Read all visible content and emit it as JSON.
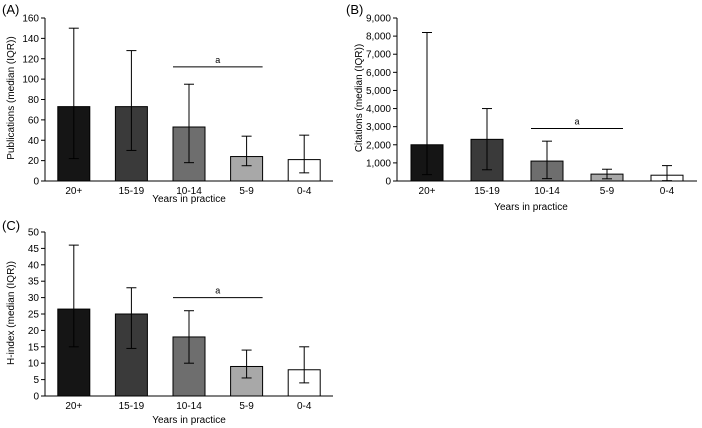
{
  "chart_data": [
    {
      "id": "A",
      "type": "bar",
      "panel_label": "(A)",
      "title": "",
      "xlabel": "Years in practice",
      "ylabel": "Publications (median (IQR))",
      "categories": [
        "20+",
        "15-19",
        "10-14",
        "5-9",
        "0-4"
      ],
      "values": [
        73,
        73,
        53,
        24,
        21
      ],
      "error_low": [
        22,
        30,
        18,
        15,
        8
      ],
      "error_high": [
        150,
        128,
        95,
        44,
        45
      ],
      "bar_colors": [
        "#151515",
        "#3a3a3a",
        "#6e6e6e",
        "#a8a8a8",
        "#ffffff"
      ],
      "yticks": [
        0,
        20,
        40,
        60,
        80,
        100,
        120,
        140,
        160
      ],
      "ytick_labels": [
        "0",
        "20",
        "40",
        "60",
        "80",
        "100",
        "120",
        "140",
        "160"
      ],
      "ylim": [
        0,
        160
      ],
      "grid": false,
      "significance": {
        "label": "a",
        "from": "10-14",
        "to": "5-9",
        "y": 112
      }
    },
    {
      "id": "B",
      "type": "bar",
      "panel_label": "(B)",
      "title": "",
      "xlabel": "Years in practice",
      "ylabel": "Citations (median (IQR))",
      "categories": [
        "20+",
        "15-19",
        "10-14",
        "5-9",
        "0-4"
      ],
      "values": [
        2000,
        2300,
        1100,
        380,
        320
      ],
      "error_low": [
        350,
        620,
        130,
        120,
        20
      ],
      "error_high": [
        8200,
        4000,
        2200,
        650,
        850
      ],
      "bar_colors": [
        "#151515",
        "#3a3a3a",
        "#6e6e6e",
        "#a8a8a8",
        "#ffffff"
      ],
      "yticks": [
        0,
        1000,
        2000,
        3000,
        4000,
        5000,
        6000,
        7000,
        8000,
        9000
      ],
      "ytick_labels": [
        "0",
        "1,000",
        "2,000",
        "3,000",
        "4,000",
        "5,000",
        "6,000",
        "7,000",
        "8,000",
        "9,000"
      ],
      "ylim": [
        0,
        9000
      ],
      "grid": false,
      "significance": {
        "label": "a",
        "from": "10-14",
        "to": "5-9",
        "y": 2900
      }
    },
    {
      "id": "C",
      "type": "bar",
      "panel_label": "(C)",
      "title": "",
      "xlabel": "Years in practice",
      "ylabel": "H-index (median (IQR))",
      "categories": [
        "20+",
        "15-19",
        "10-14",
        "5-9",
        "0-4"
      ],
      "values": [
        26.5,
        25,
        18,
        9,
        8
      ],
      "error_low": [
        15,
        14.5,
        10,
        5.5,
        4
      ],
      "error_high": [
        46,
        33,
        26,
        14,
        15
      ],
      "bar_colors": [
        "#151515",
        "#3a3a3a",
        "#6e6e6e",
        "#a8a8a8",
        "#ffffff"
      ],
      "yticks": [
        0,
        5,
        10,
        15,
        20,
        25,
        30,
        35,
        40,
        45,
        50
      ],
      "ytick_labels": [
        "0",
        "5",
        "10",
        "15",
        "20",
        "25",
        "30",
        "35",
        "40",
        "45",
        "50"
      ],
      "ylim": [
        0,
        50
      ],
      "grid": false,
      "significance": {
        "label": "a",
        "from": "10-14",
        "to": "5-9",
        "y": 30
      }
    }
  ]
}
